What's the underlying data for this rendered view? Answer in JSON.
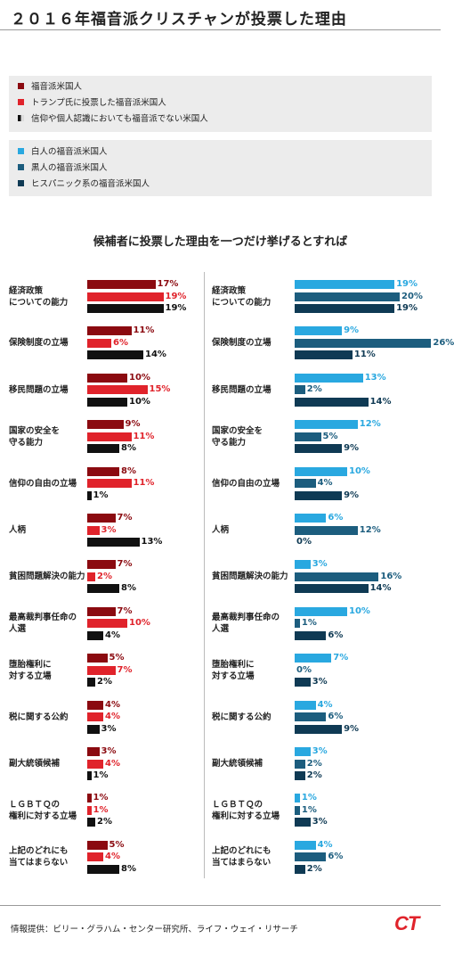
{
  "title": "２０１６年福音派クリスチャンが投票した理由",
  "legend_left": [
    {
      "label": "福音派米国人",
      "color": "#8b0a10"
    },
    {
      "label": "トランプ氏に投票した福音派米国人",
      "color": "#e0232b"
    },
    {
      "label": "信仰や個人認識においても福音派でない米国人",
      "color": "#111111"
    }
  ],
  "legend_right": [
    {
      "label": "白人の福音派米国人",
      "color": "#29a8e0"
    },
    {
      "label": "黒人の福音派米国人",
      "color": "#1c5d7e"
    },
    {
      "label": "ヒスパニック系の福音派米国人",
      "color": "#0f3a54"
    }
  ],
  "chart_data": {
    "type": "bar",
    "title": "候補者に投票した理由を一つだけ挙げるとすれば",
    "unit": "%",
    "categories": [
      "経済政策\nについての能力",
      "保険制度の立場",
      "移民問題の立場",
      "国家の安全を\n守る能力",
      "信仰の自由の立場",
      "人柄",
      "貧困問題解決の能力",
      "最高裁判事任命の\n人選",
      "堕胎権利に\n対する立場",
      "税に関する公約",
      "副大統領候補",
      "ＬＧＢＴＱの\n権利に対する立場",
      "上記のどれにも\n当てはまらない"
    ],
    "panels": [
      {
        "series": [
          {
            "name": "福音派米国人",
            "color": "#8b0a10",
            "label_color": "#8b0a10",
            "values": [
              17,
              11,
              10,
              9,
              8,
              7,
              7,
              7,
              5,
              4,
              3,
              1,
              5
            ]
          },
          {
            "name": "トランプ氏に投票した福音派米国人",
            "color": "#e0232b",
            "label_color": "#e0232b",
            "values": [
              19,
              6,
              15,
              11,
              11,
              3,
              2,
              10,
              7,
              4,
              4,
              1,
              4
            ]
          },
          {
            "name": "信仰や個人認識においても福音派でない米国人",
            "color": "#111111",
            "label_color": "#111111",
            "values": [
              19,
              14,
              10,
              8,
              1,
              13,
              8,
              4,
              2,
              3,
              1,
              2,
              8
            ]
          }
        ]
      },
      {
        "series": [
          {
            "name": "白人の福音派米国人",
            "color": "#29a8e0",
            "label_color": "#29a8e0",
            "values": [
              19,
              9,
              13,
              12,
              10,
              6,
              3,
              10,
              7,
              4,
              3,
              1,
              4
            ]
          },
          {
            "name": "黒人の福音派米国人",
            "color": "#1c5d7e",
            "label_color": "#1c5d7e",
            "values": [
              20,
              26,
              2,
              5,
              4,
              12,
              16,
              1,
              0,
              6,
              2,
              1,
              6
            ]
          },
          {
            "name": "ヒスパニック系の福音派米国人",
            "color": "#0f3a54",
            "label_color": "#0f3a54",
            "values": [
              19,
              11,
              14,
              9,
              9,
              0,
              14,
              6,
              3,
              9,
              2,
              3,
              2
            ]
          }
        ]
      }
    ]
  },
  "footer": "情報提供：ビリー・グラハム・センター研究所、ライフ・ウェイ・リサーチ",
  "logo": "CT"
}
